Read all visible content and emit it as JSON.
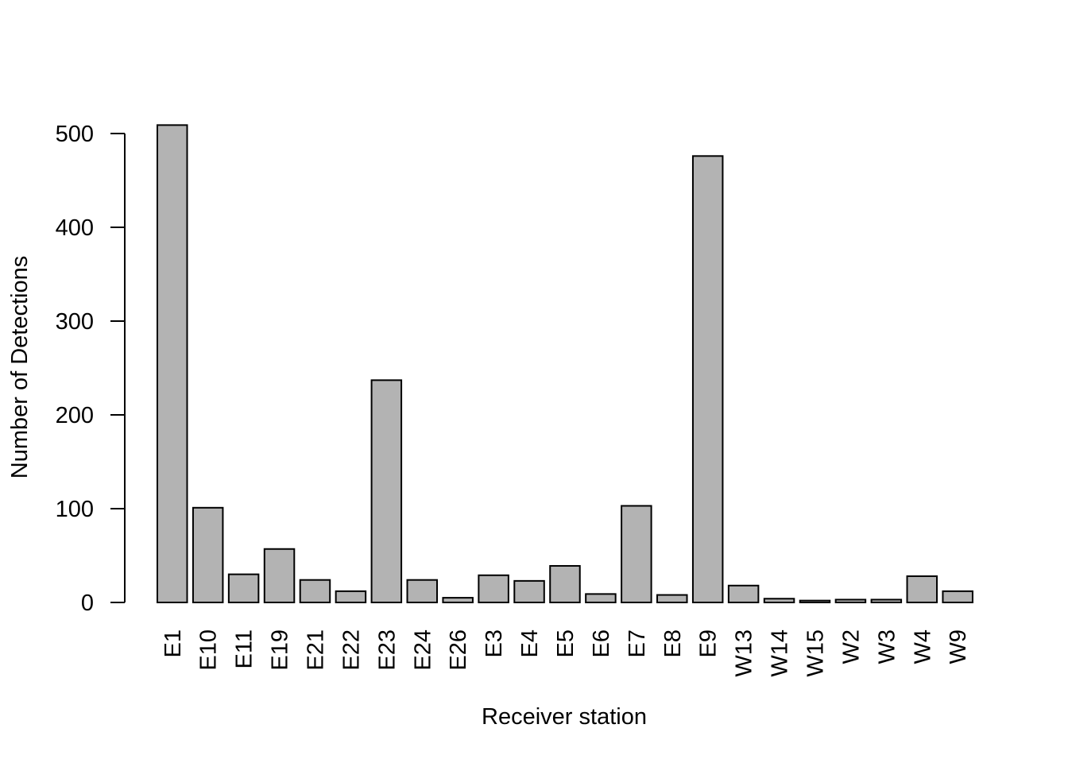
{
  "chart_data": {
    "type": "bar",
    "title": "",
    "xlabel": "Receiver station",
    "ylabel": "Number of Detections",
    "categories": [
      "E1",
      "E10",
      "E11",
      "E19",
      "E21",
      "E22",
      "E23",
      "E24",
      "E26",
      "E3",
      "E4",
      "E5",
      "E6",
      "E7",
      "E8",
      "E9",
      "W13",
      "W14",
      "W15",
      "W2",
      "W3",
      "W4",
      "W9"
    ],
    "values": [
      509,
      101,
      30,
      57,
      24,
      12,
      237,
      24,
      5,
      29,
      23,
      39,
      9,
      103,
      8,
      476,
      18,
      4,
      2,
      3,
      3,
      28,
      12
    ],
    "yticks": [
      0,
      100,
      200,
      300,
      400,
      500
    ],
    "ylim": [
      0,
      509
    ],
    "grid": false,
    "bar_color": "#b3b3b3",
    "edge_color": "#000000"
  }
}
